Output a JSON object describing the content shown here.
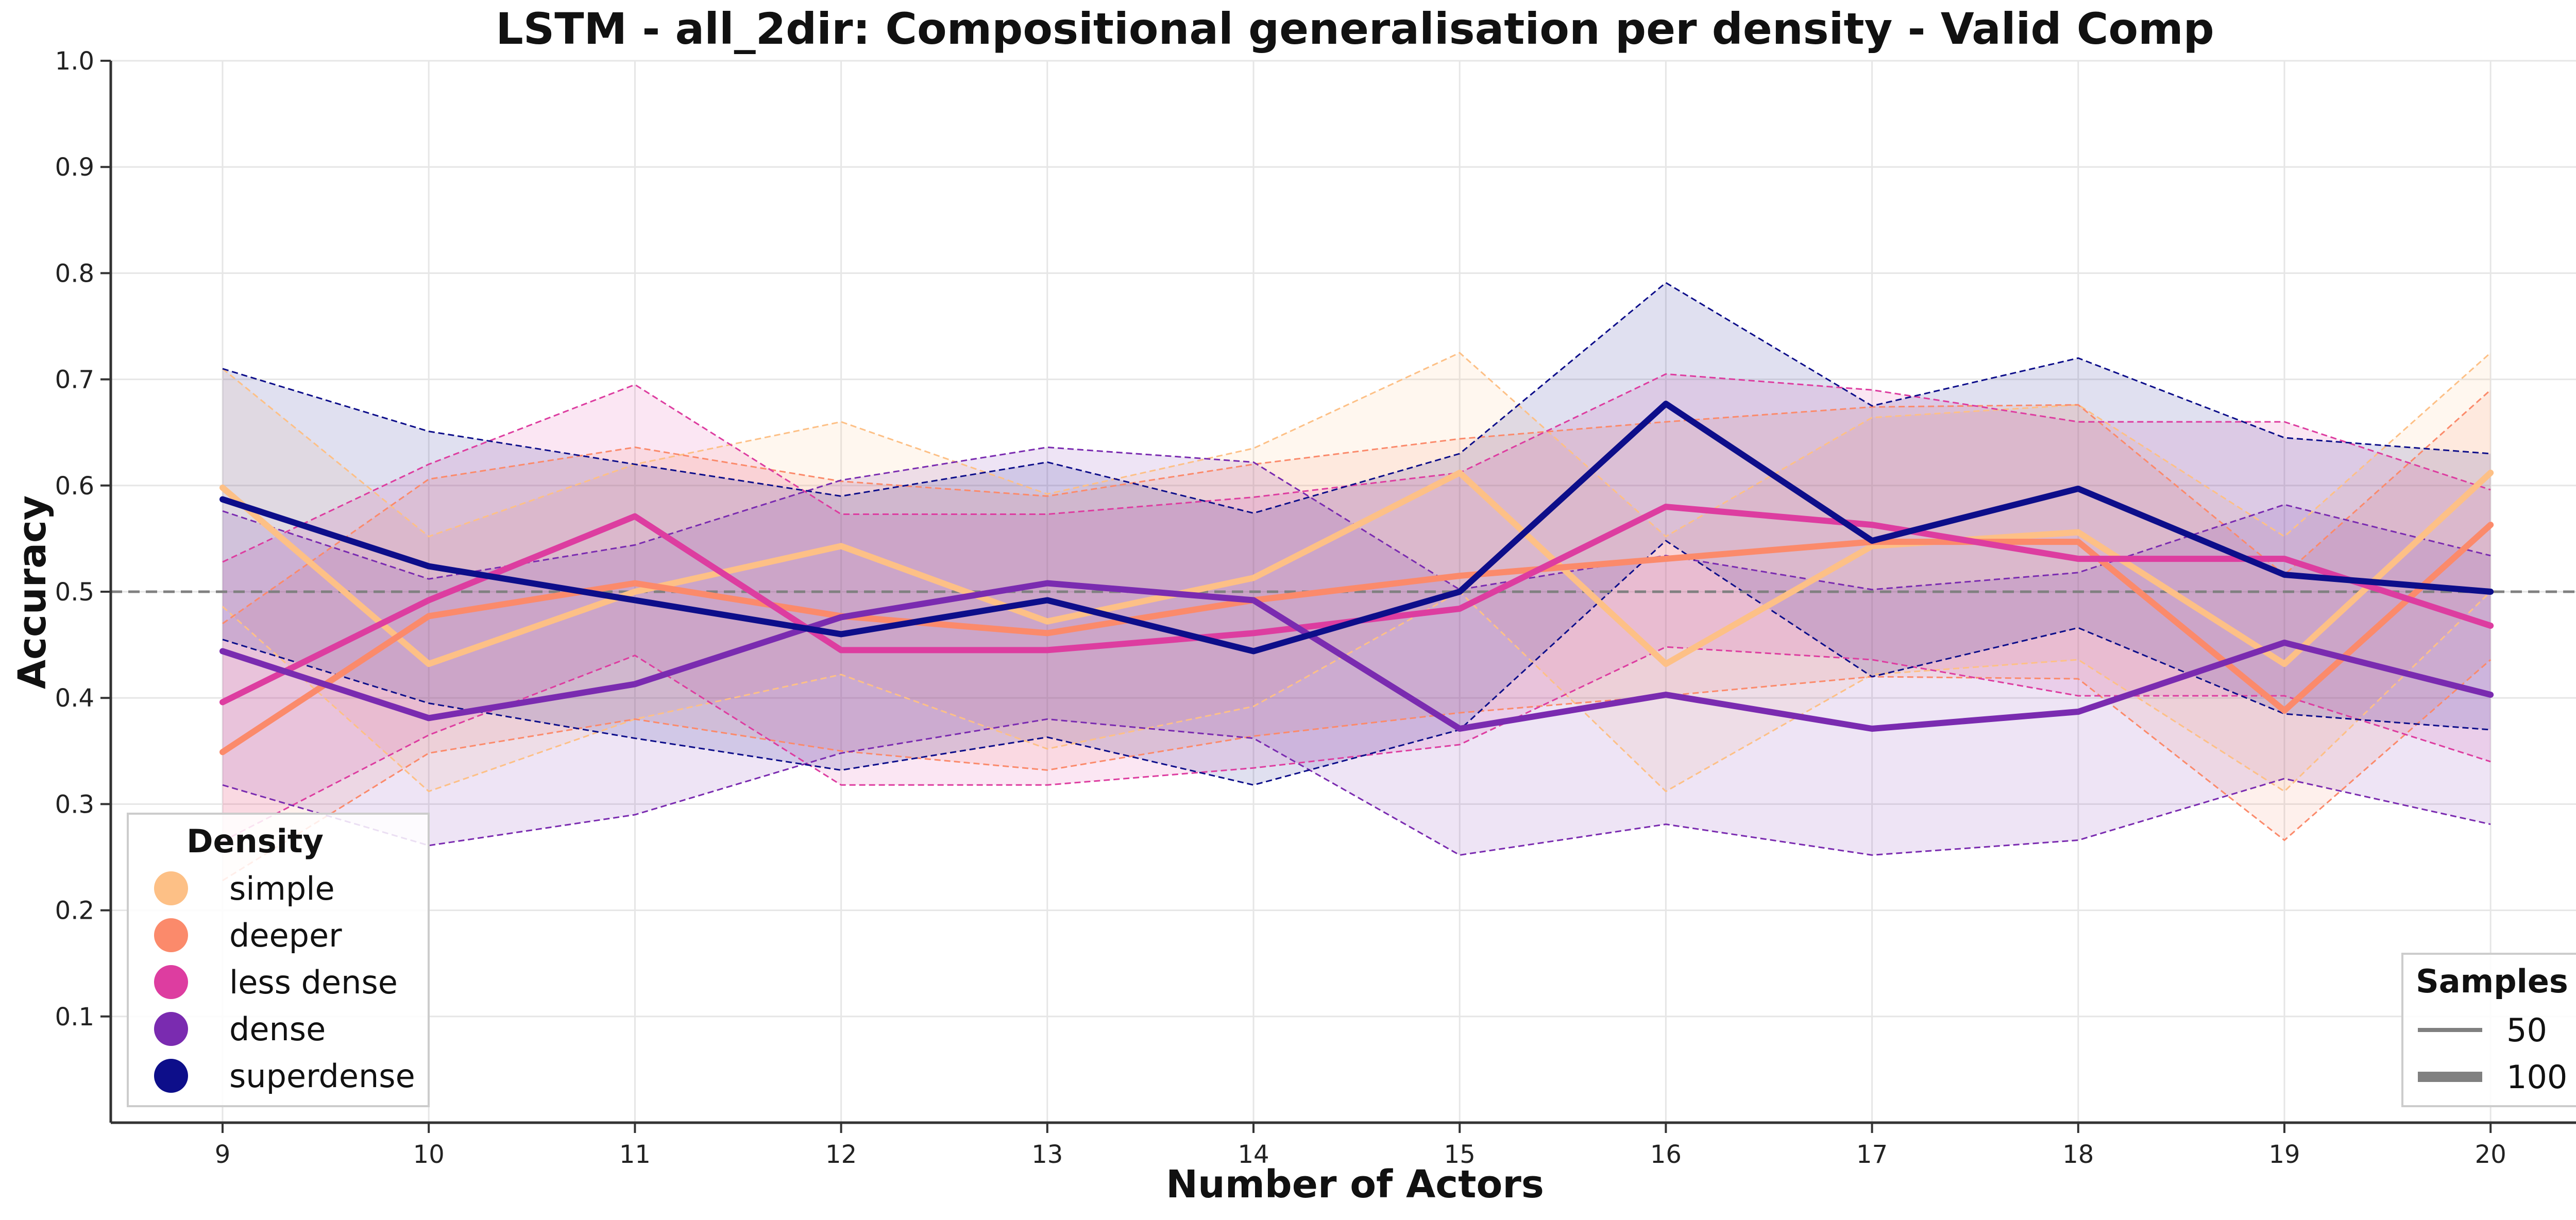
{
  "chart_data": {
    "type": "line",
    "title": "LSTM - all_2dir: Compositional generalisation per density - Valid Comp",
    "xlabel": "Number of Actors",
    "ylabel": "Accuracy",
    "x": [
      9,
      10,
      11,
      12,
      13,
      14,
      15,
      16,
      17,
      18,
      19,
      20
    ],
    "xticks": [
      "9",
      "10",
      "11",
      "12",
      "13",
      "14",
      "15",
      "16",
      "17",
      "18",
      "19",
      "20"
    ],
    "ylim": [
      0,
      1.0
    ],
    "yticks": [
      "0.1",
      "0.2",
      "0.3",
      "0.4",
      "0.5",
      "0.6",
      "0.7",
      "0.8",
      "0.9",
      "1.0"
    ],
    "grid": true,
    "reference_line": 0.5,
    "series": [
      {
        "name": "simple",
        "color": "#fdc086",
        "values": [
          0.598,
          0.432,
          0.5,
          0.543,
          0.472,
          0.513,
          0.612,
          0.432,
          0.543,
          0.556,
          0.432,
          0.612
        ],
        "upper": [
          0.71,
          0.552,
          0.62,
          0.66,
          0.592,
          0.635,
          0.725,
          0.552,
          0.664,
          0.676,
          0.552,
          0.725
        ],
        "lower": [
          0.486,
          0.312,
          0.38,
          0.422,
          0.352,
          0.392,
          0.5,
          0.312,
          0.422,
          0.436,
          0.312,
          0.5
        ]
      },
      {
        "name": "deeper",
        "color": "#fb8a6b",
        "values": [
          0.349,
          0.477,
          0.508,
          0.477,
          0.461,
          0.492,
          0.515,
          0.531,
          0.547,
          0.547,
          0.388,
          0.563
        ],
        "upper": [
          0.47,
          0.606,
          0.636,
          0.604,
          0.59,
          0.62,
          0.644,
          0.66,
          0.674,
          0.676,
          0.516,
          0.69
        ],
        "lower": [
          0.228,
          0.348,
          0.38,
          0.35,
          0.332,
          0.364,
          0.386,
          0.402,
          0.42,
          0.418,
          0.266,
          0.436
        ]
      },
      {
        "name": "less dense",
        "color": "#dd3da0",
        "values": [
          0.396,
          0.492,
          0.571,
          0.445,
          0.445,
          0.461,
          0.484,
          0.58,
          0.563,
          0.531,
          0.531,
          0.468
        ],
        "upper": [
          0.528,
          0.62,
          0.695,
          0.573,
          0.573,
          0.589,
          0.612,
          0.705,
          0.69,
          0.66,
          0.66,
          0.596
        ],
        "lower": [
          0.265,
          0.365,
          0.44,
          0.318,
          0.318,
          0.334,
          0.356,
          0.448,
          0.436,
          0.402,
          0.402,
          0.34
        ]
      },
      {
        "name": "dense",
        "color": "#7a2bb0",
        "values": [
          0.444,
          0.381,
          0.413,
          0.476,
          0.508,
          0.492,
          0.371,
          0.403,
          0.371,
          0.387,
          0.452,
          0.403
        ],
        "upper": [
          0.576,
          0.512,
          0.544,
          0.605,
          0.636,
          0.622,
          0.502,
          0.534,
          0.502,
          0.518,
          0.582,
          0.534
        ],
        "lower": [
          0.318,
          0.261,
          0.29,
          0.348,
          0.38,
          0.362,
          0.252,
          0.281,
          0.252,
          0.266,
          0.324,
          0.281
        ]
      },
      {
        "name": "superdense",
        "color": "#0d0e8a",
        "values": [
          0.587,
          0.524,
          0.492,
          0.46,
          0.492,
          0.444,
          0.5,
          0.677,
          0.548,
          0.597,
          0.516,
          0.5
        ],
        "upper": [
          0.71,
          0.651,
          0.62,
          0.59,
          0.622,
          0.574,
          0.63,
          0.791,
          0.675,
          0.72,
          0.645,
          0.63
        ],
        "lower": [
          0.455,
          0.395,
          0.362,
          0.332,
          0.363,
          0.318,
          0.37,
          0.548,
          0.42,
          0.466,
          0.385,
          0.37
        ]
      }
    ],
    "density_legend": {
      "title": "Density",
      "position": "bottom-left",
      "items": [
        "simple",
        "deeper",
        "less dense",
        "dense",
        "superdense"
      ]
    },
    "samples_legend": {
      "title": "Samples",
      "position": "bottom-right",
      "items": [
        {
          "label": "50",
          "line": "thin"
        },
        {
          "label": "100",
          "line": "thick"
        }
      ]
    }
  }
}
